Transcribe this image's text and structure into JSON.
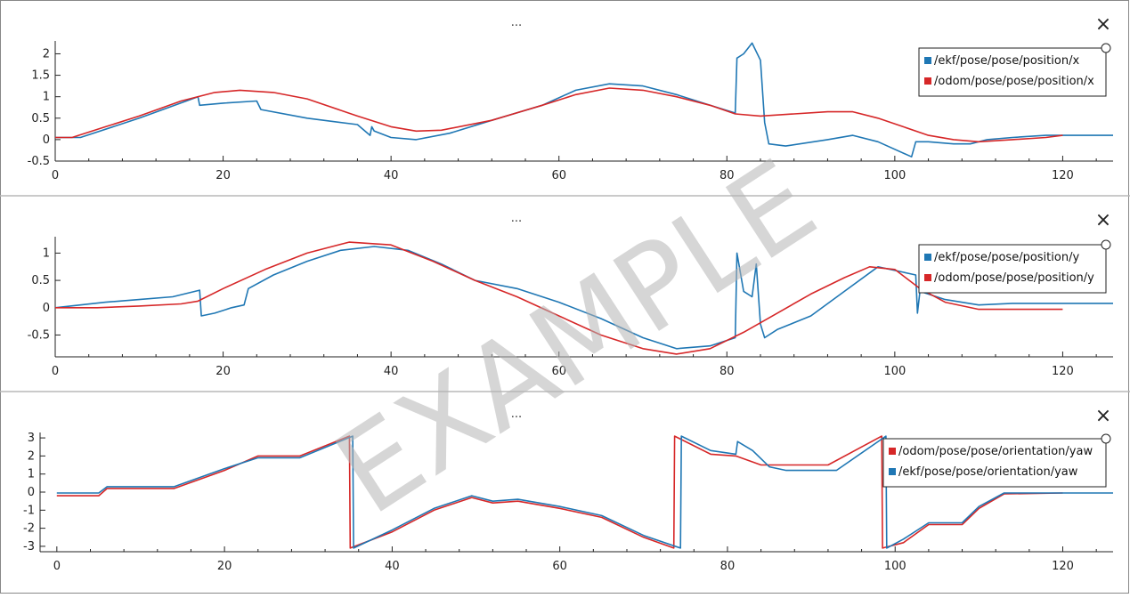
{
  "watermark": "EXAMPLE",
  "colors": {
    "blue": "#1f77b4",
    "red": "#d62728"
  },
  "panels": [
    {
      "title": "...",
      "close_icon": "×"
    },
    {
      "title": "...",
      "close_icon": "×"
    },
    {
      "title": "...",
      "close_icon": "×"
    }
  ],
  "chart_data": [
    {
      "type": "line",
      "xlim": [
        0,
        126
      ],
      "ylim": [
        -0.5,
        2.3
      ],
      "xticks": [
        0,
        20,
        40,
        60,
        80,
        100,
        120
      ],
      "yticks": [
        -0.5,
        0,
        0.5,
        1,
        1.5,
        2
      ],
      "ytick_labels": [
        "-0.5",
        "0",
        "0.5",
        "1",
        "1.5",
        "2"
      ],
      "legend_placement": "top-right",
      "series": [
        {
          "name": "/ekf/pose/pose/position/x",
          "color": "#1f77b4",
          "x": [
            0,
            3,
            10,
            17,
            17.2,
            20,
            24,
            24.5,
            30,
            36,
            37.5,
            37.7,
            38,
            40,
            43,
            47,
            52,
            58,
            62,
            66,
            70,
            74,
            78,
            81,
            81.2,
            82,
            83,
            84,
            84.5,
            85,
            87,
            92,
            95,
            98,
            102,
            102.5,
            104,
            107,
            109,
            111,
            114,
            118,
            120,
            126
          ],
          "y": [
            0.05,
            0.05,
            0.5,
            1.0,
            0.8,
            0.85,
            0.9,
            0.7,
            0.5,
            0.35,
            0.1,
            0.3,
            0.2,
            0.05,
            0,
            0.15,
            0.45,
            0.8,
            1.15,
            1.3,
            1.25,
            1.05,
            0.8,
            0.62,
            1.9,
            2.0,
            2.25,
            1.85,
            0.4,
            -0.1,
            -0.15,
            0.0,
            0.1,
            -0.05,
            -0.4,
            -0.05,
            -0.05,
            -0.1,
            -0.1,
            0.0,
            0.05,
            0.1,
            0.1,
            0.1
          ]
        },
        {
          "name": "/odom/pose/pose/position/x",
          "color": "#d62728",
          "x": [
            0,
            2,
            6,
            10,
            15,
            19,
            22,
            26,
            30,
            36,
            40,
            43,
            46,
            52,
            58,
            62,
            66,
            70,
            74,
            78,
            81,
            84,
            88,
            92,
            95,
            98,
            101,
            104,
            107,
            110,
            114,
            118,
            120
          ],
          "y": [
            0.05,
            0.05,
            0.3,
            0.55,
            0.9,
            1.1,
            1.15,
            1.1,
            0.95,
            0.55,
            0.3,
            0.2,
            0.22,
            0.45,
            0.8,
            1.05,
            1.2,
            1.15,
            1.0,
            0.8,
            0.6,
            0.55,
            0.6,
            0.65,
            0.65,
            0.5,
            0.3,
            0.1,
            0.0,
            -0.05,
            0.0,
            0.05,
            0.1
          ]
        }
      ]
    },
    {
      "type": "line",
      "xlim": [
        0,
        126
      ],
      "ylim": [
        -0.9,
        1.3
      ],
      "xticks": [
        0,
        20,
        40,
        60,
        80,
        100,
        120
      ],
      "yticks": [
        -0.5,
        0,
        0.5,
        1
      ],
      "ytick_labels": [
        "-0.5",
        "0",
        "0.5",
        "1"
      ],
      "legend_placement": "top-right",
      "series": [
        {
          "name": "/ekf/pose/pose/position/y",
          "color": "#1f77b4",
          "x": [
            0,
            3,
            6,
            10,
            14,
            17.2,
            17.4,
            19,
            21,
            22.5,
            23,
            26,
            30,
            34,
            38,
            42,
            46,
            50,
            55,
            60,
            65,
            70,
            74,
            78,
            81,
            81.2,
            82,
            83,
            83.5,
            84,
            84.5,
            86,
            90,
            94,
            98,
            101,
            102.5,
            102.7,
            103,
            106,
            110,
            114,
            118,
            120,
            126
          ],
          "y": [
            0.0,
            0.05,
            0.1,
            0.15,
            0.2,
            0.32,
            -0.15,
            -0.1,
            0.0,
            0.05,
            0.35,
            0.6,
            0.85,
            1.05,
            1.12,
            1.05,
            0.8,
            0.5,
            0.35,
            0.1,
            -0.2,
            -0.55,
            -0.75,
            -0.7,
            -0.55,
            1.0,
            0.3,
            0.2,
            0.8,
            -0.3,
            -0.55,
            -0.4,
            -0.15,
            0.3,
            0.75,
            0.65,
            0.6,
            -0.1,
            0.3,
            0.15,
            0.05,
            0.08,
            0.08,
            0.08,
            0.08
          ]
        },
        {
          "name": "/odom/pose/pose/position/y",
          "color": "#d62728",
          "x": [
            0,
            5,
            10,
            15,
            17,
            20,
            25,
            30,
            35,
            40,
            45,
            50,
            55,
            60,
            65,
            70,
            74,
            78,
            82,
            86,
            90,
            94,
            97,
            100,
            103,
            106,
            110,
            114,
            120
          ],
          "y": [
            0.0,
            0.0,
            0.03,
            0.07,
            0.12,
            0.35,
            0.7,
            1.0,
            1.2,
            1.15,
            0.85,
            0.5,
            0.2,
            -0.15,
            -0.5,
            -0.75,
            -0.85,
            -0.75,
            -0.45,
            -0.1,
            0.25,
            0.55,
            0.75,
            0.7,
            0.35,
            0.1,
            -0.03,
            -0.03,
            -0.03
          ]
        }
      ]
    },
    {
      "type": "line",
      "xlim": [
        -2,
        126
      ],
      "ylim": [
        -3.3,
        3.3
      ],
      "xticks": [
        0,
        20,
        40,
        60,
        80,
        100,
        120
      ],
      "yticks": [
        -3,
        -2,
        -1,
        0,
        1,
        2,
        3
      ],
      "ytick_labels": [
        "-3",
        "-2",
        "-1",
        "0",
        "1",
        "2",
        "3"
      ],
      "legend_placement": "top-right",
      "series": [
        {
          "name": "/odom/pose/pose/orientation/yaw",
          "color": "#d62728",
          "x": [
            0,
            5,
            6,
            14,
            20,
            24,
            29,
            34.9,
            35.0,
            40,
            45,
            49.5,
            52,
            55,
            60,
            65,
            70,
            73.6,
            73.7,
            78,
            81,
            84,
            92,
            98.4,
            98.5,
            101,
            104,
            108,
            110,
            113,
            120
          ],
          "y": [
            -0.2,
            -0.2,
            0.2,
            0.2,
            1.2,
            2.0,
            2.0,
            3.1,
            -3.1,
            -2.2,
            -1.0,
            -0.3,
            -0.6,
            -0.5,
            -0.9,
            -1.4,
            -2.5,
            -3.1,
            3.1,
            2.1,
            2.0,
            1.5,
            1.5,
            3.1,
            -3.1,
            -2.8,
            -1.8,
            -1.8,
            -0.9,
            -0.1,
            -0.05
          ]
        },
        {
          "name": "/ekf/pose/pose/orientation/yaw",
          "color": "#1f77b4",
          "x": [
            0,
            5,
            6,
            14,
            20,
            24,
            29,
            35.3,
            35.4,
            40,
            45,
            49.5,
            52,
            55,
            60,
            65,
            70,
            74.4,
            74.5,
            78,
            81,
            81.2,
            83,
            85,
            87,
            93,
            98.9,
            99.0,
            101,
            104,
            108,
            110,
            113,
            120,
            126
          ],
          "y": [
            -0.05,
            -0.05,
            0.3,
            0.3,
            1.3,
            1.9,
            1.9,
            3.1,
            -3.1,
            -2.1,
            -0.9,
            -0.2,
            -0.5,
            -0.4,
            -0.8,
            -1.3,
            -2.4,
            -3.1,
            3.1,
            2.3,
            2.1,
            2.8,
            2.3,
            1.4,
            1.2,
            1.2,
            3.1,
            -3.1,
            -2.6,
            -1.7,
            -1.7,
            -0.8,
            -0.05,
            -0.05,
            -0.05
          ]
        }
      ]
    }
  ]
}
